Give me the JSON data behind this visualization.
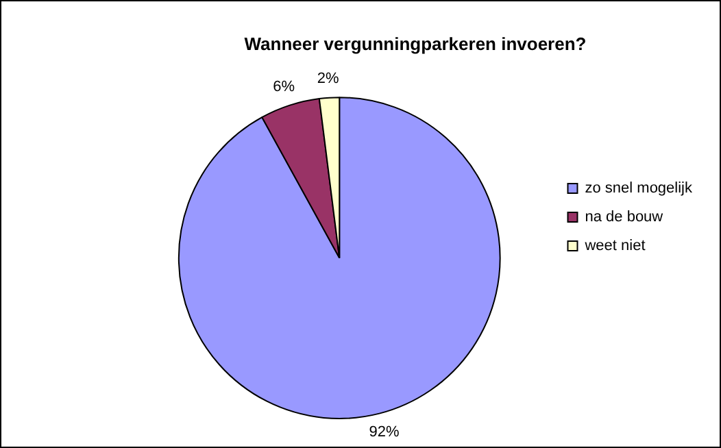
{
  "chart_data": {
    "type": "pie",
    "title": "Wanneer vergunningparkeren invoeren?",
    "categories": [
      "zo snel mogelijk",
      "na de bouw",
      "weet niet"
    ],
    "values": [
      92,
      6,
      2
    ],
    "colors": [
      "#9999ff",
      "#993366",
      "#ffffcc"
    ],
    "value_labels": [
      "92%",
      "6%",
      "2%"
    ],
    "legend": "right"
  }
}
